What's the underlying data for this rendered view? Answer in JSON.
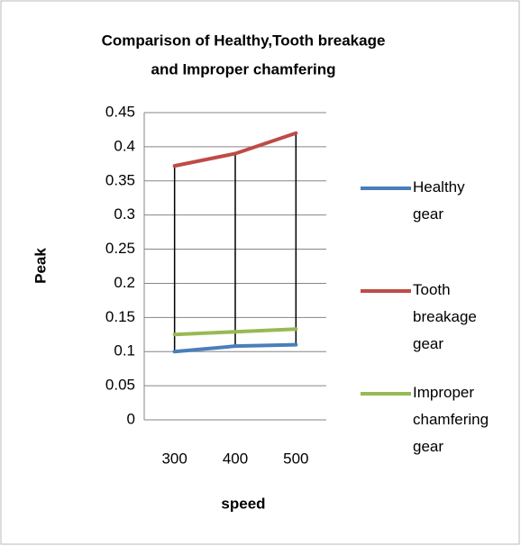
{
  "chart_data": {
    "type": "line",
    "title": [
      "Comparison of Healthy,Tooth breakage",
      "and Improper chamfering"
    ],
    "x_label": "speed",
    "y_label": "Peak",
    "categories": [
      "300",
      "400",
      "500"
    ],
    "series": [
      {
        "name": "Healthy gear",
        "color": "#4a7ebb",
        "values": [
          0.1,
          0.108,
          0.11
        ]
      },
      {
        "name": "Tooth breakage gear",
        "color": "#be4b48",
        "values": [
          0.372,
          0.39,
          0.42
        ]
      },
      {
        "name": "Improper chamfering gear",
        "color": "#98b954",
        "values": [
          0.125,
          0.129,
          0.133
        ]
      }
    ],
    "ylim": [
      0,
      0.45
    ],
    "yticks": [
      0,
      0.05,
      0.1,
      0.15,
      0.2,
      0.25,
      0.3,
      0.35,
      0.4,
      0.45
    ],
    "grid": true,
    "high_low_lines": true,
    "legend": "right"
  }
}
